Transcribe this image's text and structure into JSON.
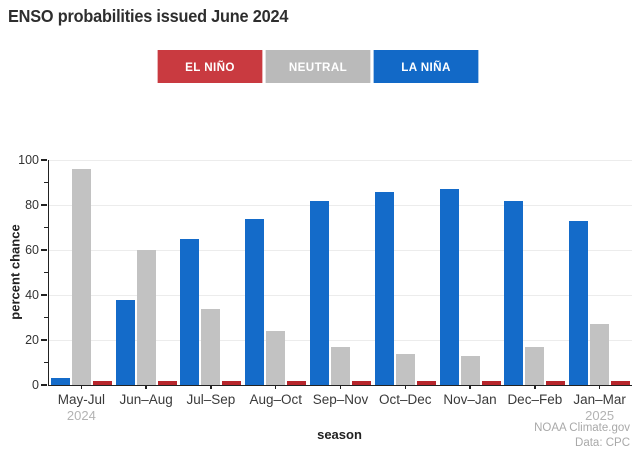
{
  "title": "ENSO probabilities issued June 2024",
  "legend": {
    "items": [
      {
        "id": "el-nino",
        "label": "EL NIÑO",
        "color": "#c93a40"
      },
      {
        "id": "neutral",
        "label": "NEUTRAL",
        "color": "#bababa"
      },
      {
        "id": "la-nina",
        "label": "LA NIÑA",
        "color": "#1269c7"
      }
    ]
  },
  "chart_data": {
    "type": "bar",
    "title": "ENSO probabilities issued June 2024",
    "xlabel": "season",
    "ylabel": "percent chance",
    "ylim": [
      0,
      100
    ],
    "yticks": [
      0,
      20,
      40,
      60,
      80,
      100
    ],
    "yticks_minor": [
      10,
      30,
      50,
      70,
      90
    ],
    "grid": true,
    "legend_position": "top",
    "categories": [
      "May-Jul",
      "Jun–Aug",
      "Jul–Sep",
      "Aug–Oct",
      "Sep–Nov",
      "Oct–Dec",
      "Nov–Jan",
      "Dec–Feb",
      "Jan–Mar"
    ],
    "category_sublabels": [
      "2024",
      "",
      "",
      "",
      "",
      "",
      "",
      "",
      "2025"
    ],
    "series": [
      {
        "key": "la-nina",
        "name": "La Niña",
        "color": "#146bc9",
        "values": [
          3,
          38,
          65,
          74,
          82,
          86,
          87,
          82,
          73
        ]
      },
      {
        "key": "neutral",
        "name": "Neutral",
        "color": "#c2c2c2",
        "values": [
          96,
          60,
          34,
          24,
          17,
          14,
          13,
          17,
          27
        ]
      },
      {
        "key": "el-nino",
        "name": "El Niño",
        "color": "#b7262c",
        "values": [
          2,
          2,
          2,
          2,
          2,
          2,
          2,
          2,
          2
        ]
      }
    ]
  },
  "footer": {
    "line1": "NOAA Climate.gov",
    "line2": "Data: CPC"
  }
}
